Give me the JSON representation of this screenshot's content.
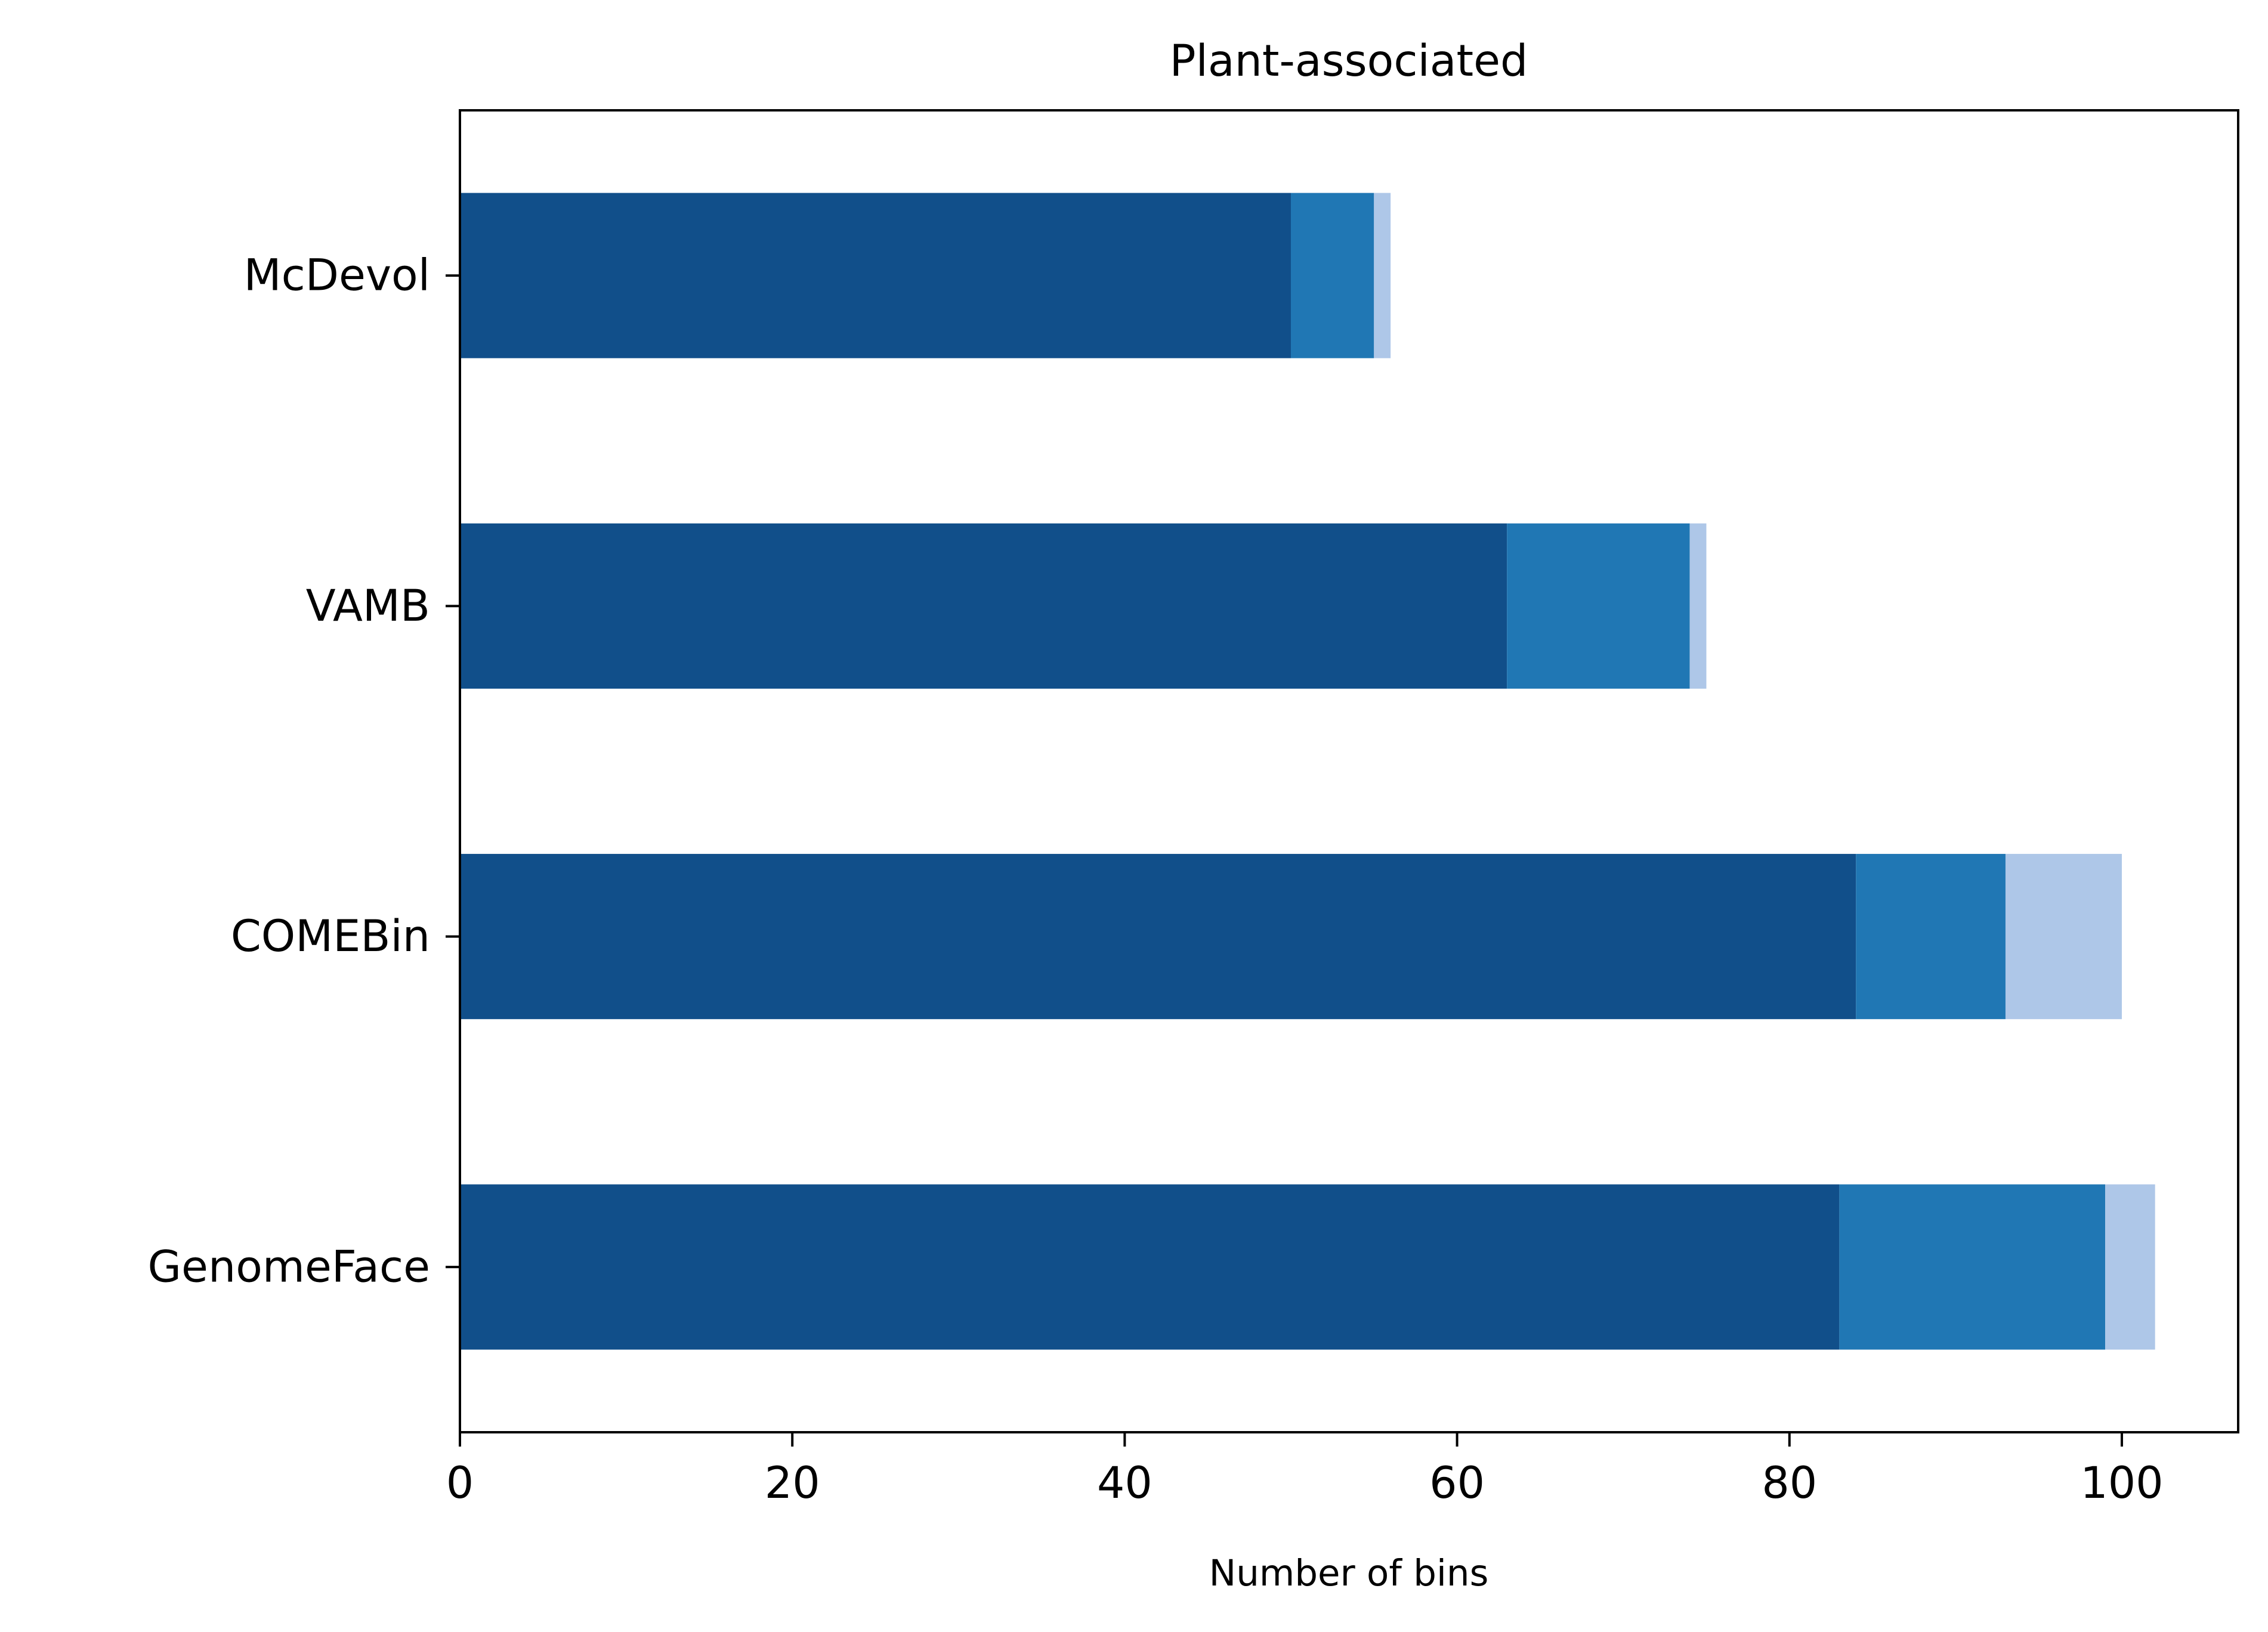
{
  "chart_data": {
    "type": "bar",
    "orientation": "horizontal",
    "stacked": true,
    "title": "Plant-associated",
    "xlabel": "Number of bins",
    "ylabel": "",
    "categories": [
      "McDevol",
      "VAMB",
      "COMEBin",
      "GenomeFace"
    ],
    "series": [
      {
        "color": "#114f8a",
        "values": [
          50,
          63,
          84,
          83
        ]
      },
      {
        "color": "#2077b4",
        "values": [
          5,
          11,
          9,
          16
        ]
      },
      {
        "color": "#aec7e8",
        "values": [
          1,
          1,
          7,
          3
        ]
      }
    ],
    "xlim": [
      0,
      107
    ],
    "xticks": [
      0,
      20,
      40,
      60,
      80,
      100
    ],
    "grid": false,
    "legend": "none"
  }
}
